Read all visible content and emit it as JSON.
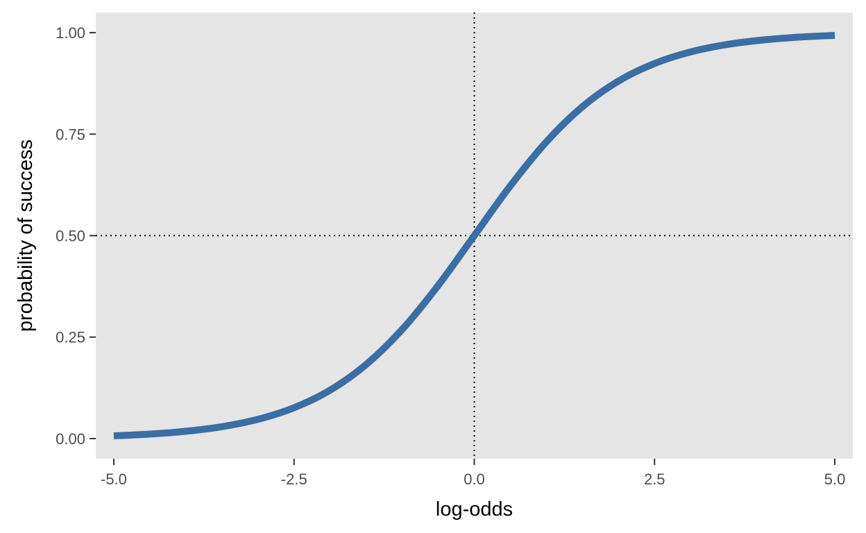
{
  "chart_data": {
    "type": "line",
    "title": "",
    "xlabel": "log-odds",
    "ylabel": "probability of success",
    "xlim": [
      -5.25,
      5.25
    ],
    "ylim": [
      -0.0497,
      1.0497
    ],
    "x_ticks": [
      -5.0,
      -2.5,
      0.0,
      2.5,
      5.0
    ],
    "x_tick_labels": [
      "-5.0",
      "-2.5",
      "0.0",
      "2.5",
      "5.0"
    ],
    "y_ticks": [
      0.0,
      0.25,
      0.5,
      0.75,
      1.0
    ],
    "y_tick_labels": [
      "0.00",
      "0.25",
      "0.50",
      "0.75",
      "1.00"
    ],
    "grid": false,
    "legend": "none",
    "reference_lines": [
      {
        "orientation": "vertical",
        "value": 0.0,
        "style": "dotted"
      },
      {
        "orientation": "horizontal",
        "value": 0.5,
        "style": "dotted"
      }
    ],
    "series": [
      {
        "color": "#3a6ea5",
        "x": [
          -5.0,
          -4.5,
          -4.0,
          -3.5,
          -3.0,
          -2.5,
          -2.0,
          -1.5,
          -1.0,
          -0.5,
          0.0,
          0.5,
          1.0,
          1.5,
          2.0,
          2.5,
          3.0,
          3.5,
          4.0,
          4.5,
          5.0
        ],
        "y": [
          0.0067,
          0.011,
          0.018,
          0.0293,
          0.0474,
          0.0759,
          0.1192,
          0.1824,
          0.2689,
          0.3775,
          0.5,
          0.6225,
          0.7311,
          0.8176,
          0.8808,
          0.9241,
          0.9526,
          0.9707,
          0.982,
          0.989,
          0.9933
        ]
      }
    ]
  },
  "colors": {
    "panel_background": "#e5e5e5",
    "tick_color": "#333333",
    "tick_label_color": "#4d4d4d",
    "reference_line_color": "#000000"
  }
}
